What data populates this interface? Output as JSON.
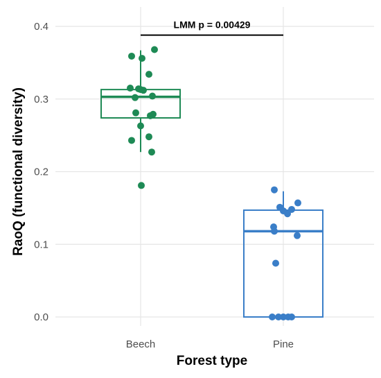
{
  "chart_data": {
    "type": "box",
    "xlabel": "Forest type",
    "ylabel": "RaoQ (functional diversity)",
    "ylim": [
      -0.01,
      0.4
    ],
    "y_ticks": [
      "0.0",
      "0.1",
      "0.2",
      "0.3",
      "0.4"
    ],
    "y_tick_values": [
      0.0,
      0.1,
      0.2,
      0.3,
      0.4
    ],
    "categories": [
      "Beech",
      "Pine"
    ],
    "grid": true,
    "annotation": "LMM p = 0.00429",
    "series": [
      {
        "category": "Beech",
        "color": "#1e8a55",
        "box": {
          "q1": 0.274,
          "median": 0.303,
          "q3": 0.313,
          "whisker_low": 0.227,
          "whisker_high": 0.367
        },
        "points": [
          0.368,
          0.359,
          0.356,
          0.334,
          0.315,
          0.314,
          0.313,
          0.312,
          0.304,
          0.302,
          0.281,
          0.279,
          0.277,
          0.263,
          0.248,
          0.243,
          0.227,
          0.181
        ]
      },
      {
        "category": "Pine",
        "color": "#3a7ec8",
        "box": {
          "q1": 0.0,
          "median": 0.118,
          "q3": 0.147,
          "whisker_low": 0.0,
          "whisker_high": 0.173
        },
        "points": [
          0.175,
          0.157,
          0.151,
          0.148,
          0.146,
          0.142,
          0.124,
          0.118,
          0.112,
          0.074,
          0.0,
          0.0,
          0.0,
          0.0,
          0.0
        ]
      }
    ]
  }
}
